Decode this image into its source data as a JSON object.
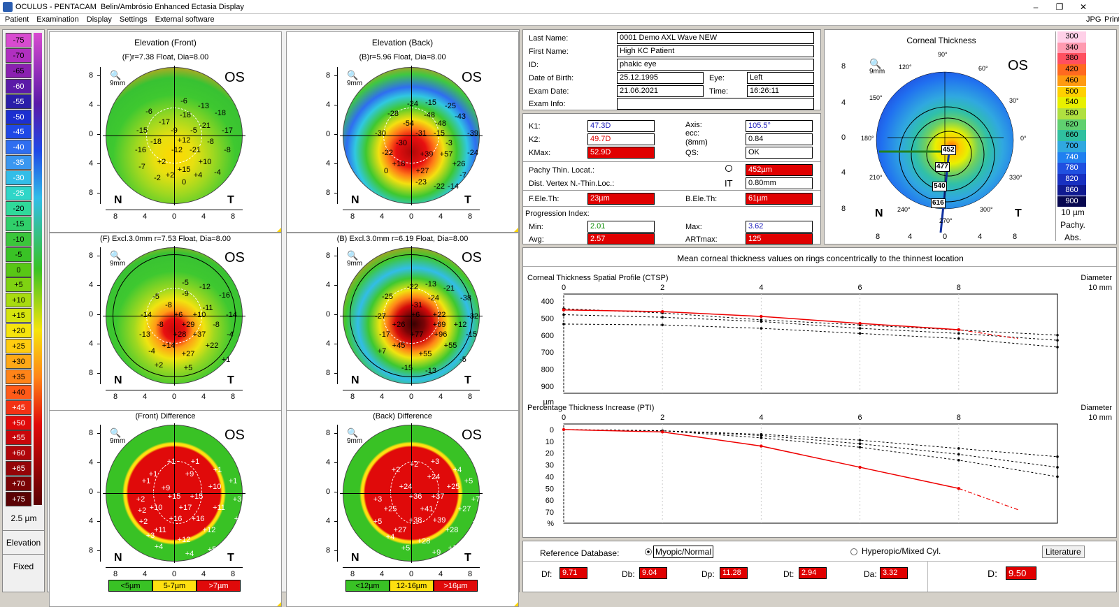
{
  "window": {
    "app": "OCULUS - PENTACAM",
    "title": "Belin/Ambrósio Enhanced Ectasia Display"
  },
  "menu": [
    "Patient",
    "Examination",
    "Display",
    "Settings",
    "External software"
  ],
  "menu_right": [
    "JPG",
    "Print"
  ],
  "legend": {
    "values": [
      "-75",
      "-70",
      "-65",
      "-60",
      "-55",
      "-50",
      "-45",
      "-40",
      "-35",
      "-30",
      "-25",
      "-20",
      "-15",
      "-10",
      "-5",
      "0",
      "+5",
      "+10",
      "+15",
      "+20",
      "+25",
      "+30",
      "+35",
      "+40",
      "+45",
      "+50",
      "+55",
      "+60",
      "+65",
      "+70",
      "+75"
    ],
    "colors": [
      "#d84bd0",
      "#b02fc0",
      "#8a20b0",
      "#5b1aa8",
      "#2a1ea8",
      "#1c2fd0",
      "#1f48e6",
      "#2f6ef0",
      "#3a97f0",
      "#32bde8",
      "#2fd6c8",
      "#30d89a",
      "#30cf6a",
      "#3bc63b",
      "#39c225",
      "#58c715",
      "#7fd212",
      "#a8dc10",
      "#d5e40e",
      "#f6e40d",
      "#ffcc10",
      "#ffa816",
      "#ff8418",
      "#ff5a18",
      "#f23214",
      "#e00a0a",
      "#c8050a",
      "#b0050a",
      "#940508",
      "#7a0406",
      "#5a0204"
    ],
    "step": "2.5 µm",
    "mode": "Elevation",
    "fixed": "Fixed"
  },
  "maps": {
    "front": {
      "title": "Elevation (Front)",
      "sub": "(F)r=7.38 Float, Dia=8.00",
      "os": "OS",
      "mm": "9mm"
    },
    "back": {
      "title": "Elevation (Back)",
      "sub": "(B)r=5.96 Float, Dia=8.00",
      "os": "OS",
      "mm": "9mm"
    },
    "front_excl": {
      "sub": "(F) Excl.3.0mm  r=7.53 Float, Dia=8.00",
      "os": "OS",
      "mm": "9mm"
    },
    "back_excl": {
      "sub": "(B) Excl.3.0mm  r=6.19 Float, Dia=8.00",
      "os": "OS",
      "mm": "9mm"
    },
    "front_diff": {
      "sub": "(Front) Difference",
      "os": "OS",
      "mm": "9mm",
      "scale": [
        "<5µm",
        "5-7µm",
        ">7µm"
      ]
    },
    "back_diff": {
      "sub": "(Back) Difference",
      "os": "OS",
      "mm": "9mm",
      "scale": [
        "<12µm",
        "12-16µm",
        ">16µm"
      ]
    },
    "axis_y": [
      "8",
      "4",
      "0",
      "4",
      "8"
    ],
    "axis_x": [
      "8",
      "4",
      "0",
      "4",
      "8"
    ],
    "n": "N",
    "t": "T"
  },
  "patient": {
    "last_name_l": "Last Name:",
    "last_name": "0001 Demo AXL Wave NEW",
    "first_name_l": "First Name:",
    "first_name": "High KC Patient",
    "id_l": "ID:",
    "id": "phakic eye",
    "dob_l": "Date of Birth:",
    "dob": "25.12.1995",
    "eye_l": "Eye:",
    "eye": "Left",
    "exam_date_l": "Exam Date:",
    "exam_date": "21.06.2021",
    "time_l": "Time:",
    "time": "16:26:11",
    "exam_info_l": "Exam Info:",
    "exam_info": ""
  },
  "kvals": {
    "k1_l": "K1:",
    "k1": "47.3D",
    "k2_l": "K2:",
    "k2": "49.7D",
    "kmax_l": "KMax:",
    "kmax": "52.9D",
    "axis_l": "Axis:",
    "axis": "105.5°",
    "ecc_l": "ecc:\n(8mm)",
    "ecc": "0.84",
    "qs_l": "QS:",
    "qs": "OK",
    "pachy_l": "Pachy Thin. Locat.:",
    "pachy": "452µm",
    "dist_l": "Dist. Vertex N.-Thin.Loc.:",
    "it": "IT",
    "dist": "0.80mm",
    "fele_l": "F.Ele.Th:",
    "fele": "23µm",
    "bele_l": "B.Ele.Th:",
    "bele": "61µm",
    "prog_l": "Progression Index:",
    "min_l": "Min:",
    "min": "2.01",
    "max_l": "Max:",
    "max": "3.62",
    "avg_l": "Avg:",
    "avg": "2.57",
    "artmax_l": "ARTmax:",
    "artmax": "125"
  },
  "thickness": {
    "title": "Corneal Thickness",
    "os": "OS",
    "mm": "9mm",
    "scale": [
      "300",
      "340",
      "380",
      "420",
      "460",
      "500",
      "540",
      "580",
      "620",
      "660",
      "700",
      "740",
      "780",
      "820",
      "860",
      "900"
    ],
    "scale_colors": [
      "#ffd0e8",
      "#ff9ab0",
      "#ff5060",
      "#ff6a20",
      "#ff9a10",
      "#ffd000",
      "#e8f000",
      "#b0e040",
      "#60d070",
      "#30c0a0",
      "#30a8e0",
      "#2080f0",
      "#2050e0",
      "#1830c0",
      "#101a90",
      "#080850"
    ],
    "unit": "10 µm",
    "pachy": "Pachy.",
    "abs": "Abs.",
    "points": [
      "452",
      "477",
      "540",
      "616"
    ],
    "angles": [
      "90°",
      "60°",
      "30°",
      "0°",
      "330°",
      "300°",
      "270°",
      "240°",
      "210°",
      "180°",
      "150°",
      "120°"
    ],
    "axis": [
      "8",
      "4",
      "0",
      "4",
      "8"
    ]
  },
  "ctsp": {
    "header": "Mean corneal thickness values on rings concentrically to the thinnest location",
    "title": "Corneal Thickness Spatial Profile (CTSP)",
    "diameter": "Diameter",
    "dia_end": "10 mm",
    "x_ticks": [
      "0",
      "2",
      "4",
      "6",
      "8"
    ],
    "y_ticks": [
      "400",
      "500",
      "600",
      "700",
      "800",
      "900",
      "µm"
    ]
  },
  "pti": {
    "title": "Percentage Thickness Increase (PTI)",
    "diameter": "Diameter",
    "dia_end": "10 mm",
    "x_ticks": [
      "0",
      "2",
      "4",
      "6",
      "8"
    ],
    "y_ticks": [
      "0",
      "10",
      "20",
      "30",
      "40",
      "50",
      "60",
      "70",
      "%"
    ]
  },
  "reference": {
    "label": "Reference Database:",
    "opt1": "Myopic/Normal",
    "opt2": "Hyperopic/Mixed Cyl.",
    "lit": "Literature"
  },
  "dvals": {
    "df_l": "Df:",
    "df": "9.71",
    "db_l": "Db:",
    "db": "9.04",
    "dp_l": "Dp:",
    "dp": "11.28",
    "dt_l": "Dt:",
    "dt": "2.94",
    "da_l": "Da:",
    "da": "3.32",
    "d_l": "D:",
    "d": "9.50"
  },
  "chart_data": [
    {
      "type": "line",
      "title": "Corneal Thickness Spatial Profile (CTSP)",
      "xlabel": "Diameter",
      "ylabel": "µm",
      "xlim": [
        0,
        10
      ],
      "ylim": [
        400,
        900
      ],
      "y_inverted": true,
      "series": [
        {
          "name": "",
          "x": [
            0,
            2,
            4,
            6,
            8,
            10
          ],
          "values": [
            452,
            462,
            490,
            531,
            568,
            620
          ]
        }
      ]
    },
    {
      "type": "line",
      "title": "Percentage Thickness Increase (PTI)",
      "xlabel": "Diameter",
      "ylabel": "%",
      "xlim": [
        0,
        10
      ],
      "ylim": [
        0,
        70
      ],
      "y_inverted": true,
      "series": [
        {
          "name": "",
          "x": [
            0,
            2,
            4,
            6,
            8,
            10
          ],
          "values": [
            0,
            2,
            14,
            32,
            50,
            68
          ]
        }
      ]
    }
  ]
}
